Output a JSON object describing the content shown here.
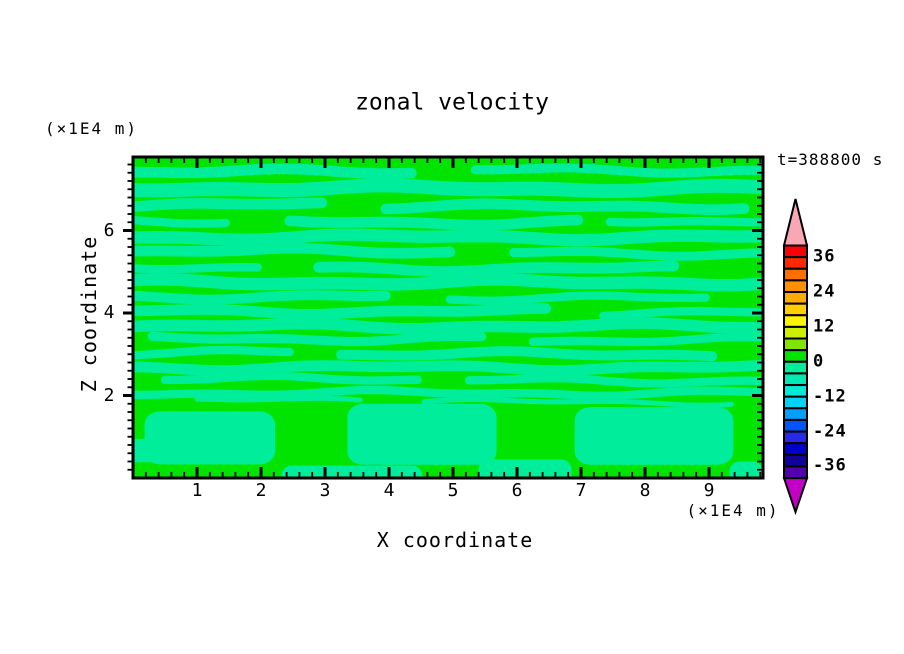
{
  "title": "zonal velocity",
  "time_label": "t=388800 s",
  "x_axis": {
    "title": "X coordinate",
    "unit": "(×1E4 m)",
    "tick_labels": [
      1,
      2,
      3,
      4,
      5,
      6,
      7,
      8,
      9
    ],
    "range": [
      0,
      9.84
    ],
    "minor_tick_step": 0.2
  },
  "z_axis": {
    "title": "Z coordinate",
    "unit": "(×1E4 m)",
    "tick_labels": [
      2,
      4,
      6
    ],
    "range": [
      0,
      7.78
    ],
    "minor_tick_step": 0.2
  },
  "chart_data": {
    "type": "heatmap",
    "subtype": "filled-contour",
    "title": "zonal velocity",
    "time_annotation": "t=388800 s",
    "xlabel": "X coordinate",
    "ylabel": "Z coordinate",
    "axis_unit": "(×1E4 m)",
    "x_range": [
      0,
      9.84
    ],
    "z_range": [
      0,
      7.78
    ],
    "contour_levels": {
      "min": -40,
      "max": 40,
      "step": 4
    },
    "colorbar": {
      "position": "right",
      "labels": [
        "36",
        "24",
        "12",
        "0",
        "-12",
        "-24",
        "-36"
      ],
      "label_step": 12,
      "box_colors_top_to_bottom": [
        "#FB0007",
        "#FF2800",
        "#FF6E00",
        "#FF9000",
        "#FFAC00",
        "#FFCE00",
        "#FFF400",
        "#CDEF00",
        "#80E400",
        "#00E400",
        "#00ED9C",
        "#00E9B4",
        "#00EBD7",
        "#00D4F5",
        "#00A0FF",
        "#0055FF",
        "#2929E8",
        "#0000CC",
        "#11009A",
        "#5000AC"
      ],
      "above_range_color": "#F9A7B5",
      "below_range_color": "#C400C8"
    },
    "field_colors": {
      "band_0_to_4": "#00E400",
      "band_minus4_to_0": "#00ED9C"
    },
    "field_description": "Velocity field stays within -4..+4: wavy horizontal negative-band streaks over positive-band background above z=2; large rounded negative cells below z=2",
    "streaks": [
      [
        0,
        4.35,
        7.42,
        0.26
      ],
      [
        5.35,
        9.84,
        7.46,
        0.22
      ],
      [
        0,
        9.84,
        7.02,
        0.34
      ],
      [
        0,
        2.95,
        6.62,
        0.26
      ],
      [
        3.95,
        9.55,
        6.58,
        0.26
      ],
      [
        0,
        1.45,
        6.24,
        0.2
      ],
      [
        2.45,
        6.95,
        6.2,
        0.26
      ],
      [
        7.45,
        9.84,
        6.24,
        0.2
      ],
      [
        0,
        9.84,
        5.84,
        0.3
      ],
      [
        0,
        4.95,
        5.5,
        0.26
      ],
      [
        5.95,
        9.84,
        5.45,
        0.22
      ],
      [
        0,
        1.95,
        5.12,
        0.2
      ],
      [
        2.9,
        8.45,
        5.08,
        0.26
      ],
      [
        0,
        9.84,
        4.74,
        0.3
      ],
      [
        0,
        3.95,
        4.4,
        0.24
      ],
      [
        4.95,
        8.95,
        4.36,
        0.2
      ],
      [
        0,
        6.45,
        4.04,
        0.26
      ],
      [
        7.35,
        9.84,
        4.0,
        0.2
      ],
      [
        0,
        9.84,
        3.68,
        0.28
      ],
      [
        0.3,
        5.45,
        3.38,
        0.22
      ],
      [
        6.25,
        9.84,
        3.34,
        0.2
      ],
      [
        0,
        2.45,
        3.04,
        0.2
      ],
      [
        3.25,
        9.05,
        3.0,
        0.24
      ],
      [
        0,
        9.84,
        2.68,
        0.26
      ],
      [
        0.5,
        4.45,
        2.4,
        0.2
      ],
      [
        5.25,
        9.84,
        2.36,
        0.2
      ],
      [
        0,
        9.84,
        2.06,
        0.2
      ],
      [
        1.0,
        3.55,
        1.88,
        0.12
      ],
      [
        4.55,
        9.35,
        1.84,
        0.12
      ]
    ],
    "bottom_blobs": [
      [
        0.18,
        2.22,
        0.33,
        1.62
      ],
      [
        3.35,
        5.68,
        0.32,
        1.8
      ],
      [
        6.9,
        9.38,
        0.32,
        1.72
      ]
    ],
    "bottom_strips": [
      [
        2.32,
        4.52,
        0,
        0.3
      ],
      [
        5.4,
        6.85,
        0,
        0.45
      ],
      [
        9.32,
        9.84,
        0,
        0.4
      ]
    ],
    "left_edge_patch": [
      0,
      0.5,
      0.38,
      0.95
    ]
  }
}
